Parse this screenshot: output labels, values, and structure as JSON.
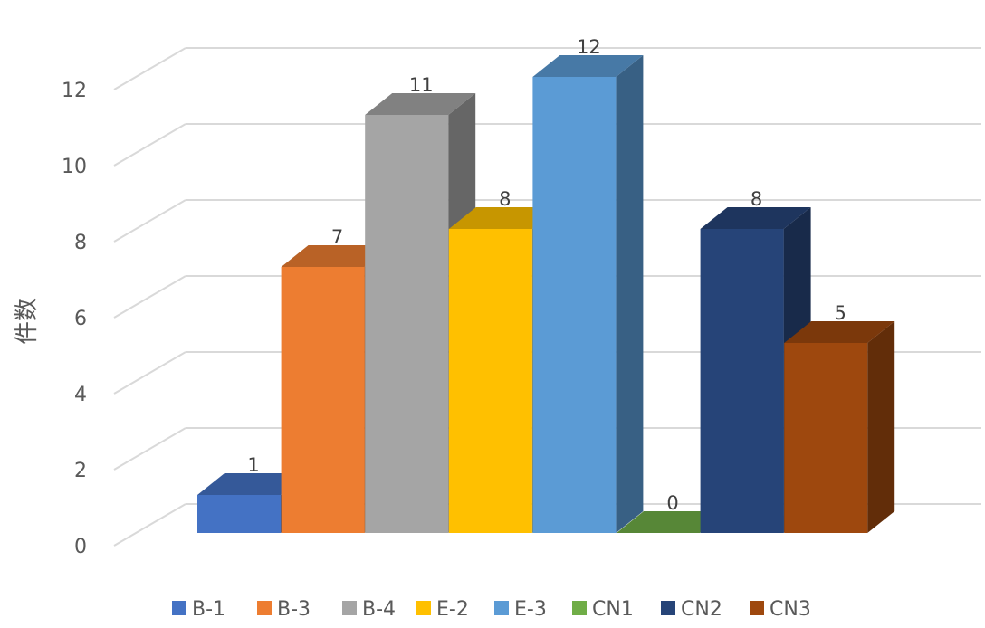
{
  "chart_data": {
    "type": "bar",
    "subtype": "3d-clustered-column",
    "title": "",
    "xlabel": "",
    "ylabel": "件数",
    "ylim": [
      0,
      12
    ],
    "yticks": [
      0,
      2,
      4,
      6,
      8,
      10,
      12
    ],
    "grid": true,
    "legend": "bottom",
    "data_labels": true,
    "series": [
      {
        "name": "B-1",
        "value": 1,
        "color": "#4472C4"
      },
      {
        "name": "B-3",
        "value": 7,
        "color": "#ED7D31"
      },
      {
        "name": "B-4",
        "value": 11,
        "color": "#A5A5A5"
      },
      {
        "name": "E-2",
        "value": 8,
        "color": "#FFC000"
      },
      {
        "name": "E-3",
        "value": 12,
        "color": "#5B9BD5"
      },
      {
        "name": "CN1",
        "value": 0,
        "color": "#70AD47"
      },
      {
        "name": "CN2",
        "value": 8,
        "color": "#264478"
      },
      {
        "name": "CN3",
        "value": 5,
        "color": "#9E480E"
      }
    ]
  }
}
